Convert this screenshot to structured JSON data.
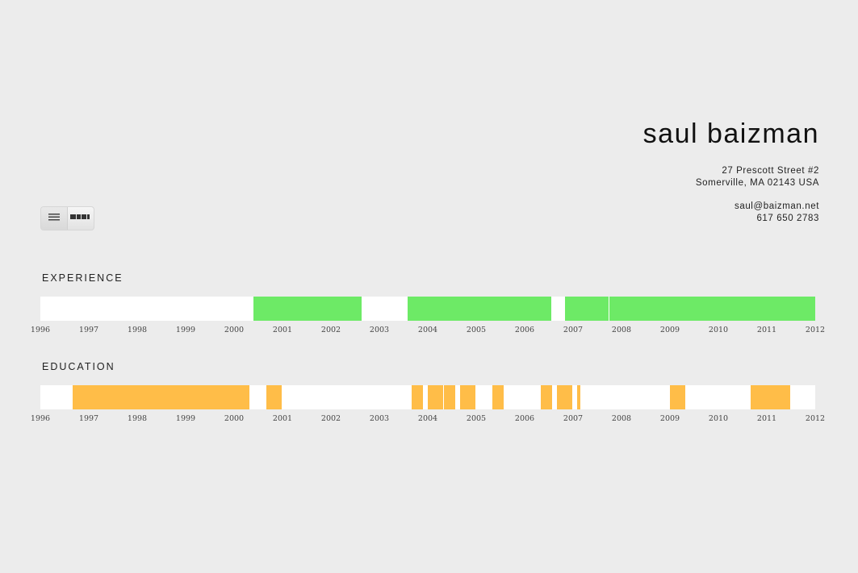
{
  "header": {
    "name": "saul baizman",
    "address_line1": "27 Prescott Street #2",
    "address_line2": "Somerville, MA 02143 USA",
    "email": "saul@baizman.net",
    "phone": "617 650 2783"
  },
  "view_toggle": {
    "options": [
      "list-view",
      "timeline-view"
    ],
    "selected": "timeline-view"
  },
  "colors": {
    "background": "#ececec",
    "track": "#ffffff",
    "experience": "#6dea66",
    "education": "#ffbd48"
  },
  "timeline": {
    "start_year": 1996,
    "end_year": 2012,
    "years": [
      "1996",
      "1997",
      "1998",
      "1999",
      "2000",
      "2001",
      "2002",
      "2003",
      "2004",
      "2005",
      "2006",
      "2007",
      "2008",
      "2009",
      "2010",
      "2011",
      "2012"
    ]
  },
  "experience": {
    "title": "EXPERIENCE",
    "entries": [
      {
        "start": 2000.4,
        "end": 2002.63
      },
      {
        "start": 2003.58,
        "end": 2006.55
      },
      {
        "start": 2006.83,
        "end": 2007.73
      },
      {
        "start": 2007.75,
        "end": 2012.0
      }
    ]
  },
  "education": {
    "title": "EDUCATION",
    "entries": [
      {
        "start": 1996.67,
        "end": 2000.32
      },
      {
        "start": 2000.67,
        "end": 2000.98
      },
      {
        "start": 2003.67,
        "end": 2003.9
      },
      {
        "start": 2004.0,
        "end": 2004.32
      },
      {
        "start": 2004.33,
        "end": 2004.57
      },
      {
        "start": 2004.67,
        "end": 2004.98
      },
      {
        "start": 2005.33,
        "end": 2005.57
      },
      {
        "start": 2006.33,
        "end": 2006.57
      },
      {
        "start": 2006.67,
        "end": 2006.98
      },
      {
        "start": 2007.08,
        "end": 2007.15
      },
      {
        "start": 2009.0,
        "end": 2009.32
      },
      {
        "start": 2010.67,
        "end": 2011.48
      }
    ]
  }
}
